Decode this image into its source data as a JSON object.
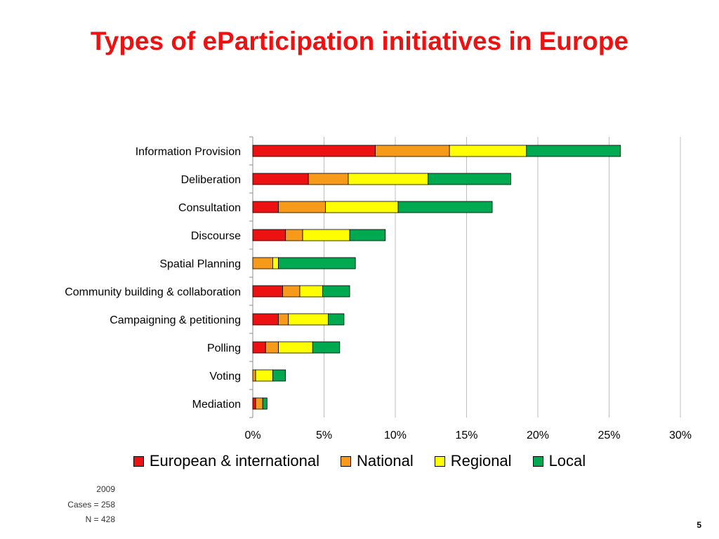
{
  "title": "Types of eParticipation initiatives in Europe",
  "footnote": {
    "year": "2009",
    "cases": "Cases = 258",
    "n": "N = 428"
  },
  "page_number": "5",
  "colors": {
    "European & international": "#ee1111",
    "National": "#f79a1a",
    "Regional": "#ffff00",
    "Local": "#00a850"
  },
  "chart_data": {
    "type": "bar",
    "orientation": "horizontal",
    "stacked": true,
    "categories": [
      "Information Provision",
      "Deliberation",
      "Consultation",
      "Discourse",
      "Spatial Planning",
      "Community building & collaboration",
      "Campaigning & petitioning",
      "Polling",
      "Voting",
      "Mediation"
    ],
    "series": [
      {
        "name": "European & international",
        "values": [
          8.6,
          3.9,
          1.8,
          2.3,
          0.0,
          2.1,
          1.8,
          0.9,
          0.0,
          0.2
        ]
      },
      {
        "name": "National",
        "values": [
          5.2,
          2.8,
          3.3,
          1.2,
          1.4,
          1.2,
          0.7,
          0.9,
          0.2,
          0.5
        ]
      },
      {
        "name": "Regional",
        "values": [
          5.4,
          5.6,
          5.1,
          3.3,
          0.4,
          1.6,
          2.8,
          2.4,
          1.2,
          0.0
        ]
      },
      {
        "name": "Local",
        "values": [
          6.6,
          5.8,
          6.6,
          2.5,
          5.4,
          1.9,
          1.1,
          1.9,
          0.9,
          0.3
        ]
      }
    ],
    "xlim": [
      0,
      30
    ],
    "xticks": [
      "0%",
      "5%",
      "10%",
      "15%",
      "20%",
      "25%",
      "30%"
    ],
    "xtick_values": [
      0,
      5,
      10,
      15,
      20,
      25,
      30
    ],
    "grid": true,
    "legend": "bottom"
  }
}
